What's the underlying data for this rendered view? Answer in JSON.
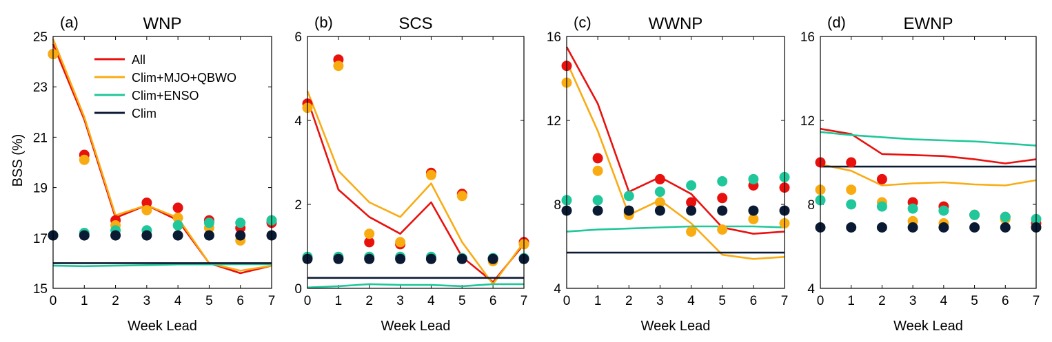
{
  "figure": {
    "ylabel": "BSS (%)",
    "xlabel": "Week Lead"
  },
  "legend": {
    "placement": "top-right inside panel (a)",
    "entries": [
      {
        "label": "All",
        "color": "#e8110e"
      },
      {
        "label": "Clim+MJO+QBWO",
        "color": "#f9ab12"
      },
      {
        "label": "Clim+ENSO",
        "color": "#1fc79a"
      },
      {
        "label": "Clim",
        "color": "#0b1a33"
      }
    ]
  },
  "chart_data": [
    {
      "type": "line",
      "panel_label": "(a)",
      "title": "WNP",
      "xlabel": "Week Lead",
      "ylabel": "BSS (%)",
      "x": [
        0,
        1,
        2,
        3,
        4,
        5,
        6,
        7
      ],
      "xlim": [
        0,
        7
      ],
      "ylim": [
        15,
        25
      ],
      "yticks": [
        15,
        17,
        19,
        21,
        23,
        25
      ],
      "grid": false,
      "lines": [
        {
          "name": "All",
          "color": "#e8110e",
          "values": [
            24.7,
            21.7,
            17.8,
            18.3,
            17.7,
            16.0,
            15.6,
            15.9
          ]
        },
        {
          "name": "Clim+MJO+QBWO",
          "color": "#f9ab12",
          "values": [
            24.9,
            21.8,
            17.9,
            18.3,
            17.8,
            16.0,
            15.7,
            15.9
          ]
        },
        {
          "name": "Clim+ENSO",
          "color": "#1fc79a",
          "values": [
            15.9,
            15.88,
            15.9,
            15.92,
            15.95,
            15.95,
            15.96,
            15.96
          ]
        },
        {
          "name": "Clim",
          "color": "#0b1a33",
          "values": [
            16.0,
            16.0,
            16.0,
            16.0,
            16.0,
            16.0,
            16.0,
            16.0
          ]
        }
      ],
      "points": [
        {
          "name": "All",
          "color": "#e8110e",
          "values": [
            24.3,
            20.3,
            17.7,
            18.4,
            18.2,
            17.7,
            17.4,
            17.6
          ]
        },
        {
          "name": "Clim+MJO+QBWO",
          "color": "#f9ab12",
          "values": [
            24.3,
            20.1,
            17.5,
            18.1,
            17.8,
            17.4,
            16.9,
            17.7
          ]
        },
        {
          "name": "Clim+ENSO",
          "color": "#1fc79a",
          "values": [
            17.1,
            17.2,
            17.3,
            17.3,
            17.5,
            17.6,
            17.6,
            17.7
          ]
        },
        {
          "name": "Clim",
          "color": "#0b1a33",
          "values": [
            17.1,
            17.1,
            17.1,
            17.1,
            17.1,
            17.1,
            17.1,
            17.1
          ]
        }
      ]
    },
    {
      "type": "line",
      "panel_label": "(b)",
      "title": "SCS",
      "xlabel": "Week Lead",
      "ylabel": "",
      "x": [
        0,
        1,
        2,
        3,
        4,
        5,
        6,
        7
      ],
      "xlim": [
        0,
        7
      ],
      "ylim": [
        0,
        6
      ],
      "yticks": [
        0,
        2,
        4,
        6
      ],
      "grid": false,
      "lines": [
        {
          "name": "All",
          "color": "#e8110e",
          "values": [
            4.5,
            2.35,
            1.7,
            1.3,
            2.05,
            0.75,
            0.15,
            1.05
          ]
        },
        {
          "name": "Clim+MJO+QBWO",
          "color": "#f9ab12",
          "values": [
            4.7,
            2.8,
            2.05,
            1.7,
            2.5,
            1.1,
            0.1,
            1.1
          ]
        },
        {
          "name": "Clim+ENSO",
          "color": "#1fc79a",
          "values": [
            0.02,
            0.05,
            0.1,
            0.08,
            0.08,
            0.05,
            0.1,
            0.1
          ]
        },
        {
          "name": "Clim",
          "color": "#0b1a33",
          "values": [
            0.25,
            0.25,
            0.25,
            0.25,
            0.25,
            0.25,
            0.25,
            0.25
          ]
        }
      ],
      "points": [
        {
          "name": "All",
          "color": "#e8110e",
          "values": [
            4.4,
            5.45,
            1.1,
            1.05,
            2.75,
            2.25,
            0.7,
            1.1
          ]
        },
        {
          "name": "Clim+MJO+QBWO",
          "color": "#f9ab12",
          "values": [
            4.3,
            5.3,
            1.3,
            1.1,
            2.7,
            2.2,
            0.65,
            1.05
          ]
        },
        {
          "name": "Clim+ENSO",
          "color": "#1fc79a",
          "values": [
            0.75,
            0.75,
            0.75,
            0.75,
            0.75,
            0.72,
            0.72,
            0.72
          ]
        },
        {
          "name": "Clim",
          "color": "#0b1a33",
          "values": [
            0.7,
            0.7,
            0.7,
            0.7,
            0.7,
            0.7,
            0.7,
            0.7
          ]
        }
      ]
    },
    {
      "type": "line",
      "panel_label": "(c)",
      "title": "WWNP",
      "xlabel": "Week Lead",
      "ylabel": "",
      "x": [
        0,
        1,
        2,
        3,
        4,
        5,
        6,
        7
      ],
      "xlim": [
        0,
        7
      ],
      "ylim": [
        4,
        16
      ],
      "yticks": [
        4,
        8,
        12,
        16
      ],
      "grid": false,
      "lines": [
        {
          "name": "All",
          "color": "#e8110e",
          "values": [
            15.5,
            12.8,
            8.6,
            9.3,
            8.5,
            6.9,
            6.6,
            6.7
          ]
        },
        {
          "name": "Clim+MJO+QBWO",
          "color": "#f9ab12",
          "values": [
            14.8,
            11.5,
            7.5,
            8.2,
            7.1,
            5.6,
            5.4,
            5.5
          ]
        },
        {
          "name": "Clim+ENSO",
          "color": "#1fc79a",
          "values": [
            6.7,
            6.8,
            6.85,
            6.9,
            6.95,
            6.95,
            6.95,
            6.9
          ]
        },
        {
          "name": "Clim",
          "color": "#0b1a33",
          "values": [
            5.7,
            5.7,
            5.7,
            5.7,
            5.7,
            5.7,
            5.7,
            5.7
          ]
        }
      ],
      "points": [
        {
          "name": "All",
          "color": "#e8110e",
          "values": [
            14.6,
            10.2,
            7.6,
            9.2,
            8.1,
            8.3,
            8.9,
            8.8
          ]
        },
        {
          "name": "Clim+MJO+QBWO",
          "color": "#f9ab12",
          "values": [
            13.8,
            9.6,
            7.5,
            8.1,
            6.7,
            6.8,
            7.3,
            7.1
          ]
        },
        {
          "name": "Clim+ENSO",
          "color": "#1fc79a",
          "values": [
            8.2,
            8.2,
            8.4,
            8.6,
            8.9,
            9.1,
            9.2,
            9.3
          ]
        },
        {
          "name": "Clim",
          "color": "#0b1a33",
          "values": [
            7.7,
            7.7,
            7.7,
            7.7,
            7.7,
            7.7,
            7.7,
            7.7
          ]
        }
      ]
    },
    {
      "type": "line",
      "panel_label": "(d)",
      "title": "EWNP",
      "xlabel": "Week Lead",
      "ylabel": "",
      "x": [
        0,
        1,
        2,
        3,
        4,
        5,
        6,
        7
      ],
      "xlim": [
        0,
        7
      ],
      "ylim": [
        4,
        16
      ],
      "yticks": [
        4,
        8,
        12,
        16
      ],
      "grid": false,
      "lines": [
        {
          "name": "All",
          "color": "#e8110e",
          "values": [
            11.6,
            11.35,
            10.4,
            10.35,
            10.3,
            10.15,
            9.95,
            10.15
          ]
        },
        {
          "name": "Clim+MJO+QBWO",
          "color": "#f9ab12",
          "values": [
            9.9,
            9.6,
            8.9,
            9.0,
            9.05,
            8.95,
            8.9,
            9.15
          ]
        },
        {
          "name": "Clim+ENSO",
          "color": "#1fc79a",
          "values": [
            11.45,
            11.3,
            11.2,
            11.1,
            11.05,
            11.0,
            10.9,
            10.8
          ]
        },
        {
          "name": "Clim",
          "color": "#0b1a33",
          "values": [
            9.8,
            9.8,
            9.8,
            9.8,
            9.8,
            9.8,
            9.8,
            9.8
          ]
        }
      ],
      "points": [
        {
          "name": "All",
          "color": "#e8110e",
          "values": [
            10.0,
            10.0,
            9.2,
            8.1,
            7.9,
            7.5,
            7.4,
            7.1
          ]
        },
        {
          "name": "Clim+MJO+QBWO",
          "color": "#f9ab12",
          "values": [
            8.7,
            8.7,
            8.1,
            7.2,
            7.1,
            7.5,
            7.3,
            6.9
          ]
        },
        {
          "name": "Clim+ENSO",
          "color": "#1fc79a",
          "values": [
            8.2,
            8.0,
            7.9,
            7.8,
            7.7,
            7.5,
            7.4,
            7.3
          ]
        },
        {
          "name": "Clim",
          "color": "#0b1a33",
          "values": [
            6.9,
            6.9,
            6.9,
            6.9,
            6.9,
            6.9,
            6.9,
            6.9
          ]
        }
      ]
    }
  ]
}
